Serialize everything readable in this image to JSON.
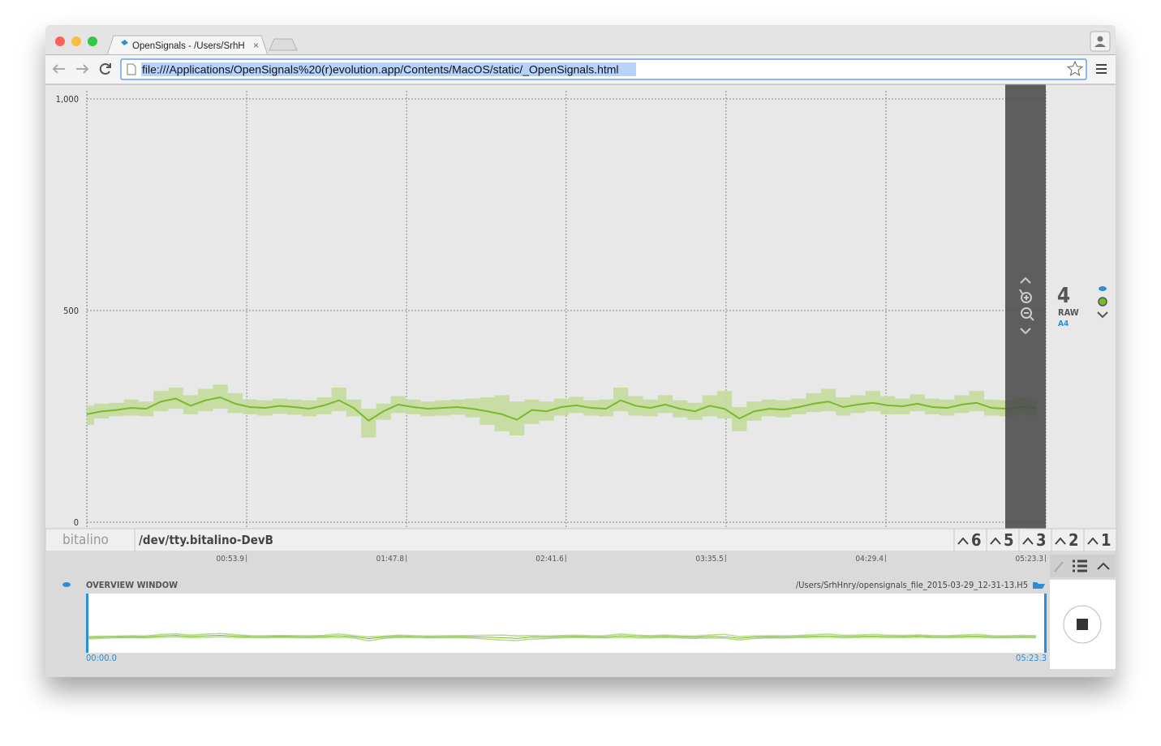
{
  "browser": {
    "tab_title": "OpenSignals - /Users/SrhH",
    "url": "file:///Applications/OpenSignals%20(r)evolution.app/Contents/MacOS/static/_OpenSignals.html"
  },
  "device": {
    "logo": "bitalino",
    "port": "/dev/tty.bitalino-DevB",
    "channel_buttons": [
      "6",
      "5",
      "3",
      "2",
      "1"
    ]
  },
  "channel": {
    "number": "4",
    "mode": "RAW",
    "input": "A4"
  },
  "overview": {
    "title": "OVERVIEW WINDOW",
    "file": "/Users/SrhHnry/opensignals_file_2015-03-29_12-31-13.H5",
    "start": "00:00.0",
    "end": "05:23.3"
  },
  "chart_data": {
    "type": "line",
    "x": [
      0,
      5,
      10,
      15,
      20,
      25,
      30,
      35,
      40,
      45,
      50,
      55,
      60,
      65,
      70,
      75,
      80,
      85,
      90,
      95,
      100,
      105,
      110,
      115,
      120,
      125,
      130,
      135,
      140,
      145,
      150,
      155,
      160,
      165,
      170,
      175,
      180,
      185,
      190,
      195,
      200,
      205,
      210,
      215,
      220,
      225,
      230,
      235,
      240,
      245,
      250,
      255,
      260,
      265,
      270,
      275,
      280,
      285,
      290,
      295,
      300,
      305,
      310,
      315,
      320
    ],
    "series": [
      {
        "color": "#7ab929",
        "values": [
          255,
          262,
          265,
          270,
          268,
          285,
          292,
          275,
          288,
          295,
          280,
          272,
          270,
          275,
          272,
          268,
          276,
          288,
          270,
          240,
          262,
          278,
          272,
          268,
          270,
          272,
          268,
          262,
          255,
          242,
          265,
          262,
          272,
          276,
          270,
          268,
          288,
          275,
          270,
          278,
          268,
          262,
          275,
          268,
          245,
          262,
          268,
          266,
          272,
          280,
          285,
          272,
          278,
          282,
          276,
          274,
          280,
          272,
          270,
          278,
          282,
          270,
          268,
          272,
          270
        ]
      },
      {
        "color": "#c3dc9c",
        "values": [
          230,
          245,
          250,
          252,
          250,
          262,
          268,
          255,
          262,
          268,
          258,
          255,
          252,
          256,
          254,
          250,
          255,
          262,
          250,
          200,
          242,
          258,
          255,
          250,
          252,
          254,
          248,
          230,
          215,
          205,
          232,
          240,
          252,
          258,
          252,
          250,
          262,
          252,
          250,
          258,
          248,
          242,
          250,
          245,
          215,
          240,
          250,
          248,
          255,
          260,
          262,
          252,
          258,
          262,
          255,
          255,
          262,
          255,
          252,
          258,
          262,
          252,
          250,
          255,
          252
        ]
      },
      {
        "color": "#c3dc9c",
        "values": [
          275,
          280,
          282,
          290,
          285,
          310,
          318,
          300,
          315,
          325,
          305,
          290,
          288,
          292,
          290,
          288,
          295,
          318,
          290,
          268,
          280,
          298,
          290,
          285,
          288,
          290,
          292,
          295,
          300,
          285,
          290,
          285,
          292,
          296,
          288,
          290,
          318,
          298,
          290,
          300,
          288,
          282,
          300,
          310,
          272,
          285,
          290,
          288,
          292,
          305,
          315,
          295,
          300,
          310,
          298,
          292,
          302,
          292,
          290,
          300,
          310,
          290,
          288,
          295,
          290
        ]
      }
    ],
    "xlim": [
      0,
      323.3
    ],
    "xticks": [
      {
        "value": 53.9,
        "label": "00:53.9"
      },
      {
        "value": 107.8,
        "label": "01:47.8"
      },
      {
        "value": 161.6,
        "label": "02:41.6"
      },
      {
        "value": 215.5,
        "label": "03:35.5"
      },
      {
        "value": 269.4,
        "label": "04:29.4"
      },
      {
        "value": 323.3,
        "label": "05:23.3"
      }
    ],
    "ylim": [
      0,
      1000
    ],
    "yticks": [
      0,
      500,
      {
        "value": 1000,
        "label": "1,000"
      }
    ],
    "grid": true
  }
}
